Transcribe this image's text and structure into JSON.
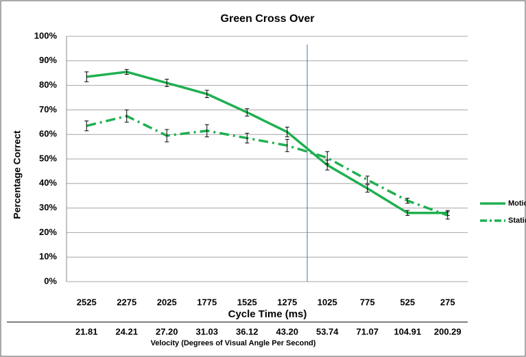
{
  "chart_data": {
    "type": "line",
    "title": "Green Cross Over",
    "y_label": "Percentage Correct",
    "x_label": "Cycle Time (ms)",
    "x2_label": "Velocity (Degrees of Visual Angle Per Second)",
    "categories": [
      "2525",
      "2275",
      "2025",
      "1775",
      "1525",
      "1275",
      "1025",
      "775",
      "525",
      "275"
    ],
    "categories2": [
      "21.81",
      "24.21",
      "27.20",
      "31.03",
      "36.12",
      "43.20",
      "53.74",
      "71.07",
      "104.91",
      "200.29"
    ],
    "series": [
      {
        "name": "Motion",
        "color": "#1fb050",
        "style": "solid",
        "values": [
          83.5,
          85.5,
          81,
          76.5,
          69,
          61,
          47.5,
          38,
          28,
          28
        ],
        "errors": [
          2,
          1,
          1.5,
          1.5,
          1.5,
          2,
          2,
          1.5,
          1,
          1
        ]
      },
      {
        "name": "Static",
        "color": "#1fb050",
        "style": "dash-dot",
        "values": [
          63.5,
          67.5,
          59.5,
          61.5,
          58.5,
          55.5,
          50.5,
          41.5,
          33,
          27
        ],
        "errors": [
          2,
          2.5,
          2.5,
          2.5,
          2,
          2.5,
          2.5,
          1.5,
          1,
          1.5
        ]
      }
    ],
    "ylim": [
      0,
      100
    ],
    "yticks": [
      {
        "value": 0,
        "label": "0%"
      },
      {
        "value": 10,
        "label": "10%"
      },
      {
        "value": 20,
        "label": "20%"
      },
      {
        "value": 30,
        "label": "30%"
      },
      {
        "value": 40,
        "label": "40%"
      },
      {
        "value": 50,
        "label": "50%"
      },
      {
        "value": 60,
        "label": "60%"
      },
      {
        "value": 70,
        "label": "70%"
      },
      {
        "value": 80,
        "label": "80%"
      },
      {
        "value": 90,
        "label": "90%"
      },
      {
        "value": 100,
        "label": "100%"
      }
    ],
    "grid": true,
    "legend": "right"
  }
}
